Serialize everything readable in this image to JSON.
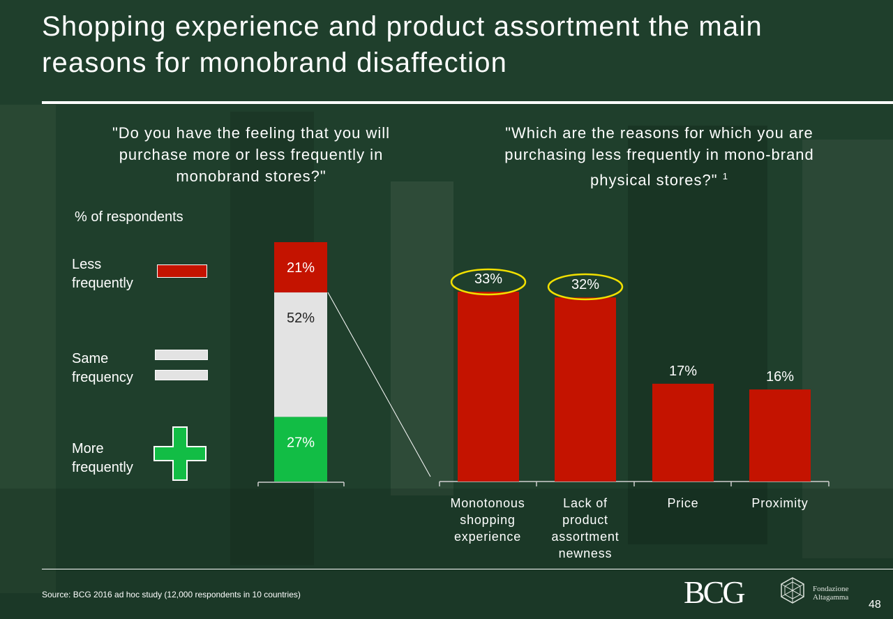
{
  "title": "Shopping experience and product assortment the main reasons for monobrand disaffection",
  "left_question": "\"Do you have the feeling that you will purchase more or less frequently in monobrand stores?\"",
  "right_question": "\"Which are the reasons for which you are purchasing less frequently in mono-brand physical stores?\"",
  "right_question_footnote": "1",
  "respondents_label": "% of respondents",
  "legend": {
    "less": "Less frequently",
    "same": "Same frequency",
    "more": "More frequently"
  },
  "colors": {
    "red": "#c41300",
    "grey": "#e3e3e3",
    "green": "#12bd45",
    "highlight": "#f2e000"
  },
  "source": "Source: BCG 2016 ad hoc study (12,000 respondents in 10 countries)",
  "page_number": "48",
  "logos": {
    "bcg": "BCG",
    "fondazione": "Fondazione Altagamma"
  },
  "chart_data": [
    {
      "type": "bar",
      "stacked": true,
      "categories": [
        ""
      ],
      "series": [
        {
          "name": "More frequently",
          "values": [
            27
          ],
          "label": "27%"
        },
        {
          "name": "Same frequency",
          "values": [
            52
          ],
          "label": "52%"
        },
        {
          "name": "Less frequently",
          "values": [
            21
          ],
          "label": "21%"
        }
      ],
      "ylim": [
        0,
        100
      ]
    },
    {
      "type": "bar",
      "categories": [
        "Monotonous shopping experience",
        "Lack of product assortment newness",
        "Price",
        "Proximity"
      ],
      "values": [
        33,
        32,
        17,
        16
      ],
      "labels": [
        "33%",
        "32%",
        "17%",
        "16%"
      ],
      "highlighted": [
        "33%",
        "32%"
      ],
      "ylim": [
        0,
        33
      ]
    }
  ]
}
